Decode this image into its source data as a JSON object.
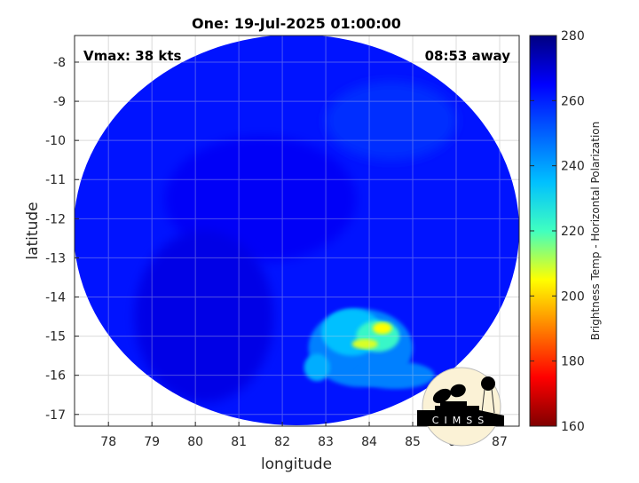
{
  "chart_data": {
    "type": "heatmap",
    "title": "One: 19-Jul-2025 01:00:00",
    "xlabel": "longitude",
    "ylabel": "latitude",
    "xlim": [
      77.22,
      87.45
    ],
    "ylim": [
      -17.3,
      -7.32
    ],
    "xticks": [
      78,
      79,
      80,
      81,
      82,
      83,
      84,
      85,
      86,
      87
    ],
    "yticks": [
      -8,
      -9,
      -10,
      -11,
      -12,
      -13,
      -14,
      -15,
      -16,
      -17
    ],
    "grid": true,
    "annotations": {
      "left": "Vmax: 38 kts",
      "right": "08:53 away"
    },
    "colorbar": {
      "label": "Brightness Temp - Horizontal Polarization",
      "range": [
        160,
        280
      ],
      "ticks": [
        160,
        180,
        200,
        220,
        240,
        260,
        280
      ],
      "colormap": "jet (reversed: cold = red, warm = blue)"
    },
    "swath": {
      "center_lon": 82.3,
      "center_lat": -12.3,
      "background_value": 262
    },
    "features": [
      {
        "lon": 81.5,
        "lat": -11.5,
        "rx": 2.2,
        "ry": 1.6,
        "value": 266
      },
      {
        "lon": 80.2,
        "lat": -14.5,
        "rx": 1.6,
        "ry": 2.2,
        "value": 268
      },
      {
        "lon": 84.5,
        "lat": -9.5,
        "rx": 1.5,
        "ry": 1.0,
        "value": 258
      },
      {
        "lon": 83.8,
        "lat": -15.3,
        "rx": 1.2,
        "ry": 1.0,
        "value": 245
      },
      {
        "lon": 83.6,
        "lat": -14.9,
        "rx": 0.7,
        "ry": 0.6,
        "value": 235
      },
      {
        "lon": 84.2,
        "lat": -15.0,
        "rx": 0.5,
        "ry": 0.4,
        "value": 222
      },
      {
        "lon": 84.3,
        "lat": -14.8,
        "rx": 0.22,
        "ry": 0.15,
        "value": 205
      },
      {
        "lon": 83.9,
        "lat": -15.2,
        "rx": 0.3,
        "ry": 0.13,
        "value": 208
      },
      {
        "lon": 84.6,
        "lat": -16.0,
        "rx": 0.9,
        "ry": 0.35,
        "value": 245
      },
      {
        "lon": 82.8,
        "lat": -15.8,
        "rx": 0.3,
        "ry": 0.35,
        "value": 238
      }
    ]
  },
  "logo": {
    "text": "CIMSS"
  }
}
